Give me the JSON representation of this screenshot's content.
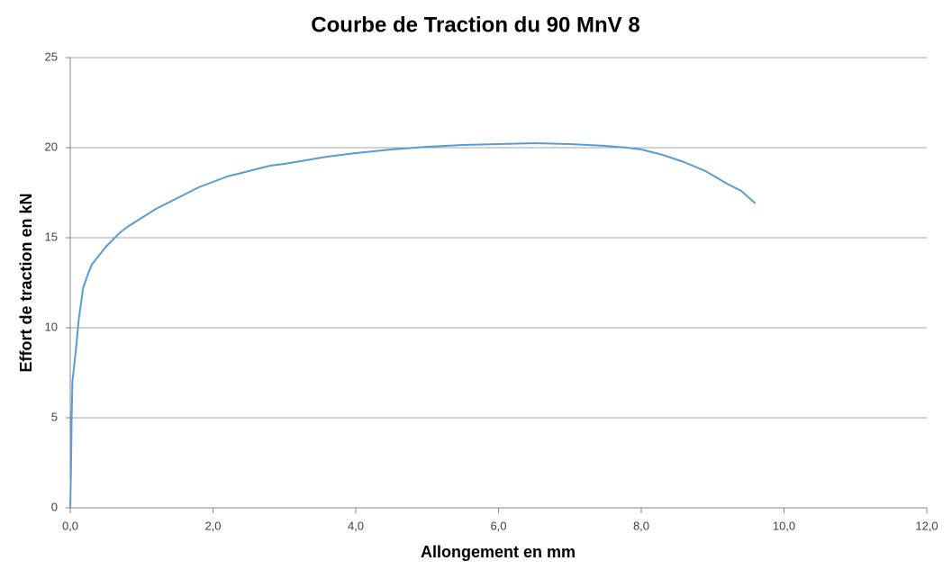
{
  "chart_data": {
    "type": "line",
    "title": "Courbe de Traction du 90 MnV 8",
    "xlabel": "Allongement en mm",
    "ylabel": "Effort de traction en kN",
    "x": [
      0,
      0.01,
      0.02,
      0.03,
      0.08,
      0.12,
      0.18,
      0.25,
      0.3,
      0.4,
      0.5,
      0.6,
      0.7,
      0.8,
      1.0,
      1.2,
      1.4,
      1.6,
      1.8,
      2.0,
      2.2,
      2.5,
      2.8,
      3.0,
      3.3,
      3.6,
      4.0,
      4.5,
      5.0,
      5.5,
      6.0,
      6.5,
      7.0,
      7.5,
      7.8,
      8.0,
      8.3,
      8.6,
      8.9,
      9.2,
      9.4,
      9.6
    ],
    "values": [
      0,
      2,
      5,
      7,
      8.8,
      10.5,
      12.2,
      13,
      13.5,
      14,
      14.5,
      14.9,
      15.3,
      15.6,
      16.1,
      16.6,
      17,
      17.4,
      17.8,
      18.1,
      18.4,
      18.7,
      19,
      19.1,
      19.3,
      19.5,
      19.7,
      19.9,
      20.05,
      20.15,
      20.2,
      20.25,
      20.2,
      20.1,
      20,
      19.9,
      19.6,
      19.2,
      18.7,
      18,
      17.6,
      16.9
    ],
    "color": "#5b9bd5",
    "xlim": [
      0,
      12
    ],
    "ylim": [
      0,
      25
    ],
    "xticks": [
      {
        "value": 0,
        "label": "0,0"
      },
      {
        "value": 2,
        "label": "2,0"
      },
      {
        "value": 4,
        "label": "4,0"
      },
      {
        "value": 6,
        "label": "6,0"
      },
      {
        "value": 8,
        "label": "8,0"
      },
      {
        "value": 10,
        "label": "10,0"
      },
      {
        "value": 12,
        "label": "12,0"
      }
    ],
    "yticks": [
      0,
      5,
      10,
      15,
      20,
      25
    ],
    "grid": true
  }
}
